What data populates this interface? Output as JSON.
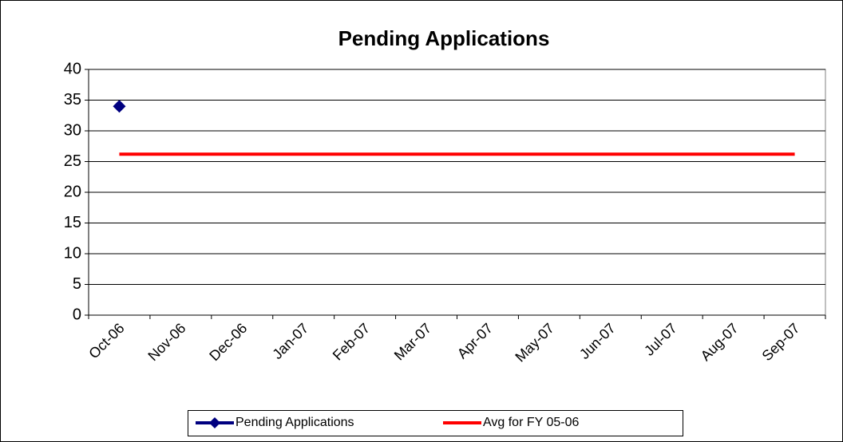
{
  "chart_data": {
    "type": "line",
    "title": "Pending Applications",
    "categories": [
      "Oct-06",
      "Nov-06",
      "Dec-06",
      "Jan-07",
      "Feb-07",
      "Mar-07",
      "Apr-07",
      "May-07",
      "Jun-07",
      "Jul-07",
      "Aug-07",
      "Sep-07"
    ],
    "series": [
      {
        "name": "Pending Applications",
        "color": "#000080",
        "marker": "diamond",
        "values": [
          34,
          null,
          null,
          null,
          null,
          null,
          null,
          null,
          null,
          null,
          null,
          null
        ]
      },
      {
        "name": "Avg for FY 05-06",
        "color": "#ff0000",
        "marker": "none",
        "values": [
          26.2,
          26.2,
          26.2,
          26.2,
          26.2,
          26.2,
          26.2,
          26.2,
          26.2,
          26.2,
          26.2,
          26.2
        ]
      }
    ],
    "ylim": [
      0,
      40
    ],
    "yticks": [
      0,
      5,
      10,
      15,
      20,
      25,
      30,
      35,
      40
    ],
    "grid": true,
    "legend": "bottom"
  }
}
